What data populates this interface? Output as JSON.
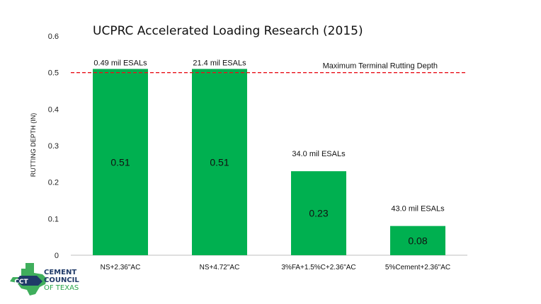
{
  "chart_data": {
    "type": "bar",
    "title": "UCPRC Accelerated Loading Research (2015)",
    "ylabel": "RUTTING DEPTH (IN)",
    "xlabel": "",
    "categories": [
      "NS+2.36\"AC",
      "NS+4.72\"AC",
      "3%FA+1.5%C+2.36\"AC",
      "5%Cement+2.36\"AC"
    ],
    "values": [
      0.51,
      0.51,
      0.23,
      0.08
    ],
    "value_labels": [
      "0.51",
      "0.51",
      "0.23",
      "0.08"
    ],
    "annotations": [
      "0.49 mil ESALs",
      "21.4 mil ESALs",
      "34.0 mil ESALs",
      "43.0 mil ESALs"
    ],
    "ylim": [
      0,
      0.6
    ],
    "yticks": [
      "0",
      "0.1",
      "0.2",
      "0.3",
      "0.4",
      "0.5",
      "0.6"
    ],
    "threshold": {
      "value": 0.5,
      "label": "Maximum Terminal Rutting Depth",
      "color": "#e8101a",
      "style": "dashed"
    },
    "bar_color": "#00b050",
    "grid": false
  },
  "logo": {
    "abbr": "CCT",
    "line1": "CEMENT",
    "line2": "COUNCIL",
    "line3": "OF TEXAS",
    "colors": {
      "navy": "#1f3a68",
      "green": "#2aa54a"
    }
  }
}
